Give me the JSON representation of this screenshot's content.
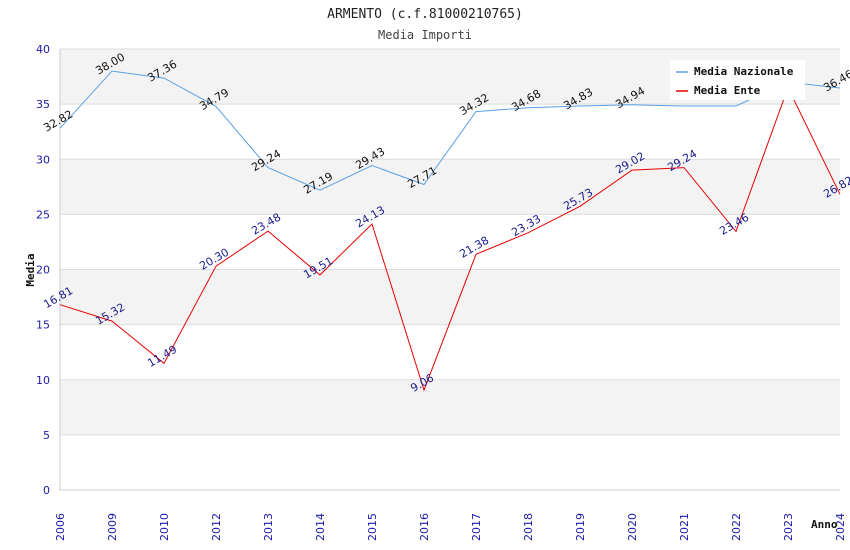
{
  "chart_data": {
    "type": "line",
    "title": "ARMENTO (c.f.81000210765)",
    "subtitle": "Media Importi",
    "xlabel": "Anno",
    "ylabel": "Media",
    "ylim": [
      0,
      40
    ],
    "yticks": [
      "0",
      "5",
      "10",
      "15",
      "20",
      "25",
      "30",
      "35",
      "40"
    ],
    "categories": [
      "2006",
      "2009",
      "2010",
      "2012",
      "2013",
      "2014",
      "2015",
      "2016",
      "2017",
      "2018",
      "2019",
      "2020",
      "2021",
      "2022",
      "2023",
      "2024"
    ],
    "series": [
      {
        "name": "Media Nazionale",
        "color": "#5aa0e6",
        "values": [
          32.82,
          38.0,
          37.36,
          34.79,
          29.24,
          27.19,
          29.43,
          27.71,
          34.32,
          34.68,
          34.83,
          34.94,
          34.83,
          34.83,
          37.0,
          36.46
        ],
        "labels": [
          "32.82",
          "38.00",
          "37.36",
          "34.79",
          "29.24",
          "27.19",
          "29.43",
          "27.71",
          "34.32",
          "34.68",
          "34.83",
          "34.94",
          "",
          "",
          "",
          "36.46"
        ]
      },
      {
        "name": "Media Ente",
        "color": "#e60000",
        "values": [
          16.81,
          15.32,
          11.49,
          20.3,
          23.48,
          19.51,
          24.13,
          9.06,
          21.38,
          23.33,
          25.73,
          29.02,
          29.24,
          23.46,
          36.5,
          26.82
        ],
        "labels": [
          "16.81",
          "15.32",
          "11.49",
          "20.30",
          "23.48",
          "19.51",
          "24.13",
          "9.06",
          "21.38",
          "23.33",
          "25.73",
          "29.02",
          "29.24",
          "23.46",
          "",
          "26.82"
        ]
      }
    ],
    "legend": "top-right"
  }
}
